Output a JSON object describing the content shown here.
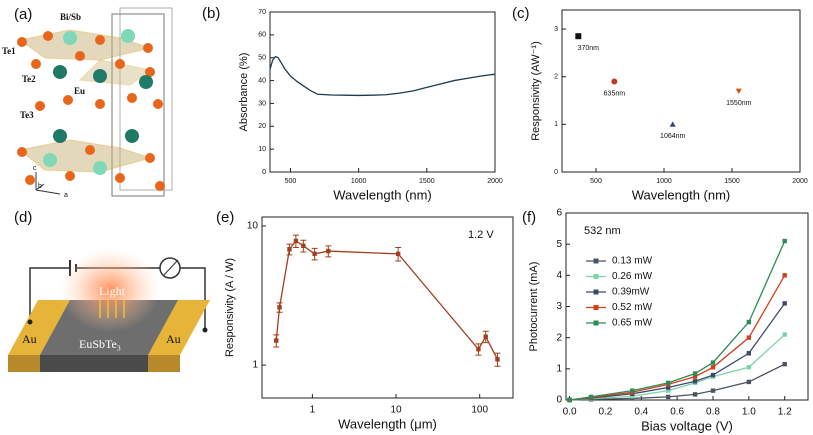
{
  "illustrations": [
    {
      "panel": "(a)",
      "texts": [
        "Bi/Sb",
        "Te1",
        "Te2",
        "Eu",
        "Te3",
        "c",
        "b",
        "a"
      ]
    },
    {
      "panel": "(d)",
      "texts": [
        "Light",
        "Au",
        "EuSbTe₃",
        "Au"
      ]
    }
  ],
  "chart_data": [
    {
      "panel": "(b)",
      "type": "line",
      "xlabel": "Wavelength (nm)",
      "ylabel": "Absorbance (%)",
      "xlim": [
        350,
        2000
      ],
      "ylim": [
        0,
        70
      ],
      "xticks": [
        500,
        1000,
        1500,
        2000
      ],
      "yticks": [
        0,
        10,
        20,
        30,
        40,
        50,
        60,
        70
      ],
      "series": [
        {
          "color": "#1f3a4d",
          "x": [
            350,
            370,
            390,
            410,
            430,
            460,
            500,
            550,
            600,
            650,
            700,
            800,
            900,
            1000,
            1100,
            1200,
            1300,
            1400,
            1500,
            1600,
            1700,
            1800,
            1900,
            2000
          ],
          "values": [
            45,
            49,
            50.5,
            50,
            48,
            45,
            42,
            39.5,
            37.5,
            35.5,
            34,
            33.7,
            33.6,
            33.5,
            33.6,
            33.8,
            34.5,
            35.5,
            37,
            38.5,
            40,
            41,
            42,
            42.8
          ]
        }
      ]
    },
    {
      "panel": "(c)",
      "type": "scatter",
      "xlabel": "Wavelength (nm)",
      "ylabel": "Responsivity (AW⁻¹)",
      "xlim": [
        250,
        2000
      ],
      "ylim": [
        0,
        3.4
      ],
      "xticks": [
        500,
        1000,
        1500,
        2000
      ],
      "yticks": [
        0,
        1,
        2,
        3
      ],
      "series": [
        {
          "x": [
            370,
            635,
            1064,
            1550
          ],
          "values": [
            2.85,
            1.9,
            1.0,
            1.7
          ],
          "colors": [
            "#111111",
            "#c0392b",
            "#2e4a7a",
            "#d35400"
          ],
          "markers": [
            "square",
            "circle",
            "triangle",
            "triangle-down"
          ],
          "labels": [
            "370nm",
            "635nm",
            "1064nm",
            "1550nm"
          ]
        }
      ]
    },
    {
      "panel": "(e)",
      "type": "line",
      "xlabel": "Wavelength (μm)",
      "ylabel": "Responsivity (A / W)",
      "xscale": "log",
      "yscale": "log",
      "xlim": [
        0.25,
        250
      ],
      "ylim": [
        0.58,
        11.6
      ],
      "xticks": [
        1,
        10,
        100
      ],
      "yticks": [
        1,
        10
      ],
      "annotation": "1.2 V",
      "series": [
        {
          "color": "#a0401e",
          "marker": "square",
          "x": [
            0.37,
            0.405,
            0.532,
            0.635,
            0.78,
            1.064,
            1.55,
            10.6,
            96.5,
            118,
            163
          ],
          "values": [
            1.5,
            2.6,
            6.8,
            7.8,
            7.2,
            6.3,
            6.6,
            6.3,
            1.3,
            1.6,
            1.1
          ],
          "errors": [
            0.15,
            0.2,
            0.6,
            0.8,
            0.7,
            0.6,
            0.6,
            0.7,
            0.12,
            0.15,
            0.12
          ]
        }
      ]
    },
    {
      "panel": "(f)",
      "type": "line",
      "xlabel": "Bias voltage (V)",
      "ylabel": "Photocurrent (mA)",
      "xlim": [
        -0.02,
        1.33
      ],
      "ylim": [
        0,
        6
      ],
      "xticks": [
        {
          "value": 0,
          "label": "0.0"
        },
        0.2,
        0.4,
        0.6,
        0.8,
        {
          "value": 1,
          "label": "1.0"
        },
        1.2
      ],
      "yticks": [
        0,
        1,
        2,
        3,
        4,
        5,
        6
      ],
      "annotation": "532 nm",
      "legend": "upper left",
      "series": [
        {
          "name": "0.13 mW",
          "color": "#4a5560",
          "marker": "square",
          "x": [
            0,
            0.12,
            0.35,
            0.55,
            0.7,
            0.8,
            1.0,
            1.2
          ],
          "values": [
            0,
            0.02,
            0.05,
            0.1,
            0.18,
            0.3,
            0.58,
            1.15
          ]
        },
        {
          "name": "0.26 mW",
          "color": "#7dd3a8",
          "marker": "square",
          "x": [
            0,
            0.12,
            0.35,
            0.55,
            0.7,
            0.8,
            1.0,
            1.2
          ],
          "values": [
            0,
            0.04,
            0.12,
            0.3,
            0.55,
            0.75,
            1.05,
            2.1
          ]
        },
        {
          "name": "0.39mW",
          "color": "#3c4a6a",
          "marker": "square",
          "x": [
            0,
            0.12,
            0.35,
            0.55,
            0.7,
            0.8,
            1.0,
            1.2
          ],
          "values": [
            0,
            0.06,
            0.2,
            0.4,
            0.6,
            0.8,
            1.5,
            3.1
          ]
        },
        {
          "name": "0.52 mW",
          "color": "#d2401a",
          "marker": "square",
          "x": [
            0,
            0.12,
            0.35,
            0.55,
            0.7,
            0.8,
            1.0,
            1.2
          ],
          "values": [
            0,
            0.08,
            0.25,
            0.5,
            0.75,
            1.05,
            2.0,
            4.0
          ]
        },
        {
          "name": "0.65 mW",
          "color": "#2e8b57",
          "marker": "square",
          "x": [
            0,
            0.12,
            0.35,
            0.55,
            0.7,
            0.8,
            1.0,
            1.2
          ],
          "values": [
            0,
            0.1,
            0.3,
            0.55,
            0.85,
            1.2,
            2.5,
            5.1
          ]
        }
      ]
    }
  ]
}
